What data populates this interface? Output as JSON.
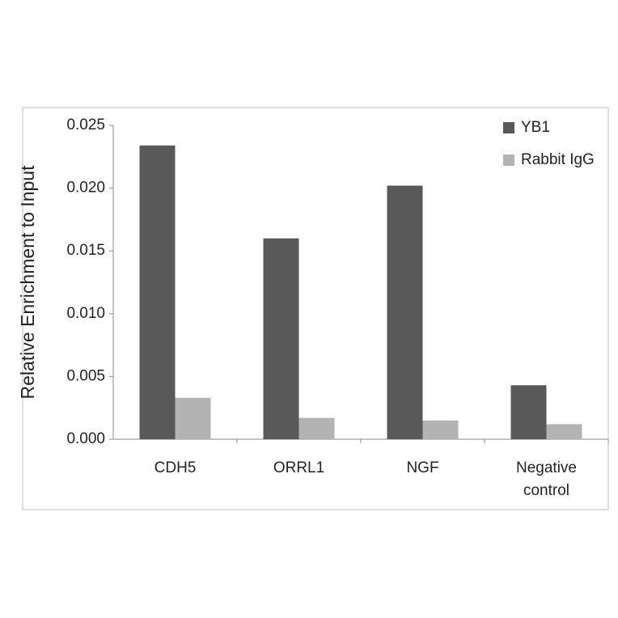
{
  "chart_data": {
    "type": "bar",
    "y_label": "Relative Enrichment to Input",
    "categories": [
      "CDH5",
      "ORRL1",
      "NGF",
      "Negative control"
    ],
    "series": [
      {
        "name": "YB1",
        "color": "#595959",
        "values": [
          0.0234,
          0.016,
          0.0202,
          0.0043
        ]
      },
      {
        "name": "Rabbit IgG",
        "color": "#b3b3b3",
        "values": [
          0.0033,
          0.0017,
          0.0015,
          0.0012
        ]
      }
    ],
    "ylim": [
      0,
      0.025
    ],
    "yticks": [
      {
        "value": 0,
        "label": "0.000"
      },
      {
        "value": 0.005,
        "label": "0.005"
      },
      {
        "value": 0.01,
        "label": "0.010"
      },
      {
        "value": 0.015,
        "label": "0.015"
      },
      {
        "value": 0.02,
        "label": "0.020"
      },
      {
        "value": 0.025,
        "label": "0.025"
      }
    ],
    "grid": false,
    "legend": "top-right"
  }
}
